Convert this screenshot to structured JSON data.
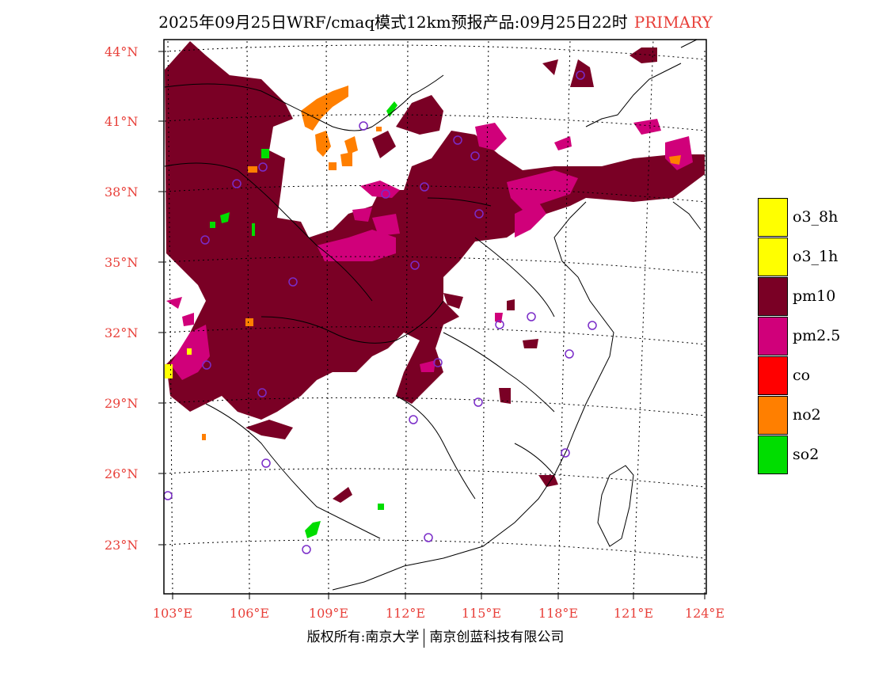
{
  "title": {
    "main": "2025年09月25日WRF/cmaq模式12km预报产品:09月25日22时",
    "tag": "PRIMARY"
  },
  "axes": {
    "lat_labels": [
      "44°N",
      "41°N",
      "38°N",
      "35°N",
      "32°N",
      "29°N",
      "26°N",
      "23°N"
    ],
    "lon_labels": [
      "103°E",
      "106°E",
      "109°E",
      "112°E",
      "115°E",
      "118°E",
      "121°E",
      "124°E"
    ]
  },
  "legend": [
    {
      "label": "o3_8h",
      "color": "#ffff00"
    },
    {
      "label": "o3_1h",
      "color": "#ffff00"
    },
    {
      "label": "pm10",
      "color": "#7a0025"
    },
    {
      "label": "pm2.5",
      "color": "#d0007a"
    },
    {
      "label": "co",
      "color": "#ff0000"
    },
    {
      "label": "no2",
      "color": "#ff7f00"
    },
    {
      "label": "so2",
      "color": "#00dd00"
    }
  ],
  "footer": {
    "left": "版权所有:南京大学",
    "right": "南京创蓝科技有限公司"
  },
  "colors": {
    "pm10": "#7a0025",
    "pm25": "#d0007a",
    "no2": "#ff7f00",
    "so2": "#00dd00",
    "o3": "#ffff00",
    "axis_text": "#e8403a",
    "station": "#7a2cc8"
  }
}
